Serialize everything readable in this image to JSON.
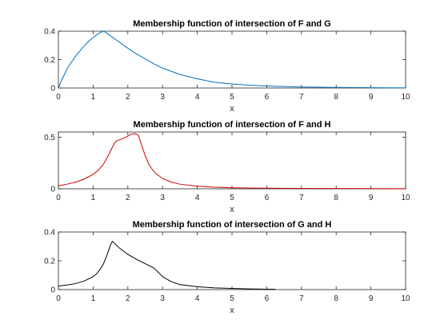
{
  "chart_data": [
    {
      "type": "line",
      "title": "Membership function of intersection of F and G",
      "xlabel": "x",
      "ylabel": "",
      "xlim": [
        0,
        10
      ],
      "ylim": [
        0,
        0.4
      ],
      "xticks": [
        0,
        1,
        2,
        3,
        4,
        5,
        6,
        7,
        8,
        9,
        10
      ],
      "yticks": [
        0,
        0.2,
        0.4
      ],
      "ytick_labels": [
        "0",
        "0.2",
        "0.4"
      ],
      "grid": true,
      "minor_grid": true,
      "series": [
        {
          "color": "#0072bd",
          "x": [
            0,
            0.1,
            0.2,
            0.3,
            0.4,
            0.5,
            0.6,
            0.7,
            0.8,
            0.9,
            1.0,
            1.1,
            1.2,
            1.3,
            1.4,
            1.6,
            1.8,
            2.0,
            2.25,
            2.5,
            2.75,
            3.0,
            3.5,
            4.0,
            4.5,
            5.0,
            5.5,
            6.0,
            7.0,
            8.0,
            9.0,
            10.0
          ],
          "y": [
            0,
            0.06,
            0.11,
            0.155,
            0.19,
            0.225,
            0.255,
            0.285,
            0.31,
            0.335,
            0.355,
            0.375,
            0.39,
            0.4,
            0.385,
            0.35,
            0.315,
            0.28,
            0.24,
            0.205,
            0.17,
            0.14,
            0.095,
            0.065,
            0.04,
            0.028,
            0.02,
            0.014,
            0.007,
            0.004,
            0.002,
            0.001
          ]
        }
      ]
    },
    {
      "type": "line",
      "title": "Membership function of intersection of F and H",
      "xlabel": "x",
      "ylabel": "",
      "xlim": [
        0,
        10
      ],
      "ylim": [
        0,
        0.55
      ],
      "xticks": [
        0,
        1,
        2,
        3,
        4,
        5,
        6,
        7,
        8,
        9,
        10
      ],
      "yticks": [
        0,
        0.5
      ],
      "ytick_labels": [
        "0",
        "0.5"
      ],
      "grid": true,
      "minor_grid": true,
      "series": [
        {
          "color": "#d00000",
          "x": [
            0,
            0.25,
            0.5,
            0.75,
            1.0,
            1.15,
            1.3,
            1.45,
            1.55,
            1.65,
            1.8,
            1.95,
            2.1,
            2.2,
            2.3,
            2.4,
            2.5,
            2.6,
            2.7,
            2.8,
            3.0,
            3.25,
            3.5,
            4.0,
            4.5,
            5.0,
            6.0,
            7.0,
            8.0,
            9.0,
            10.0
          ],
          "y": [
            0.03,
            0.045,
            0.065,
            0.095,
            0.14,
            0.18,
            0.24,
            0.33,
            0.4,
            0.46,
            0.48,
            0.5,
            0.53,
            0.535,
            0.52,
            0.42,
            0.32,
            0.24,
            0.19,
            0.15,
            0.1,
            0.065,
            0.045,
            0.025,
            0.015,
            0.01,
            0.006,
            0.004,
            0.003,
            0.002,
            0.001
          ]
        }
      ]
    },
    {
      "type": "line",
      "title": "Membership function of intersection of G and H",
      "xlabel": "x",
      "ylabel": "",
      "xlim": [
        0,
        10
      ],
      "ylim": [
        0,
        0.4
      ],
      "xticks": [
        0,
        1,
        2,
        3,
        4,
        5,
        6,
        7,
        8,
        9,
        10
      ],
      "yticks": [
        0,
        0.2,
        0.4
      ],
      "ytick_labels": [
        "0",
        "0.2",
        "0.4"
      ],
      "grid": true,
      "minor_grid": true,
      "series": [
        {
          "color": "#000000",
          "x": [
            0,
            0.25,
            0.5,
            0.75,
            1.0,
            1.1,
            1.2,
            1.3,
            1.4,
            1.5,
            1.55,
            1.6,
            1.75,
            2.0,
            2.25,
            2.5,
            2.75,
            2.9,
            3.0,
            3.25,
            3.5,
            4.0,
            4.5,
            5.0,
            5.5,
            6.0,
            6.25
          ],
          "y": [
            0.025,
            0.032,
            0.042,
            0.06,
            0.09,
            0.11,
            0.14,
            0.18,
            0.24,
            0.31,
            0.335,
            0.325,
            0.29,
            0.245,
            0.21,
            0.18,
            0.15,
            0.115,
            0.09,
            0.055,
            0.035,
            0.02,
            0.012,
            0.008,
            0.005,
            0.003,
            0.002
          ]
        }
      ]
    }
  ]
}
